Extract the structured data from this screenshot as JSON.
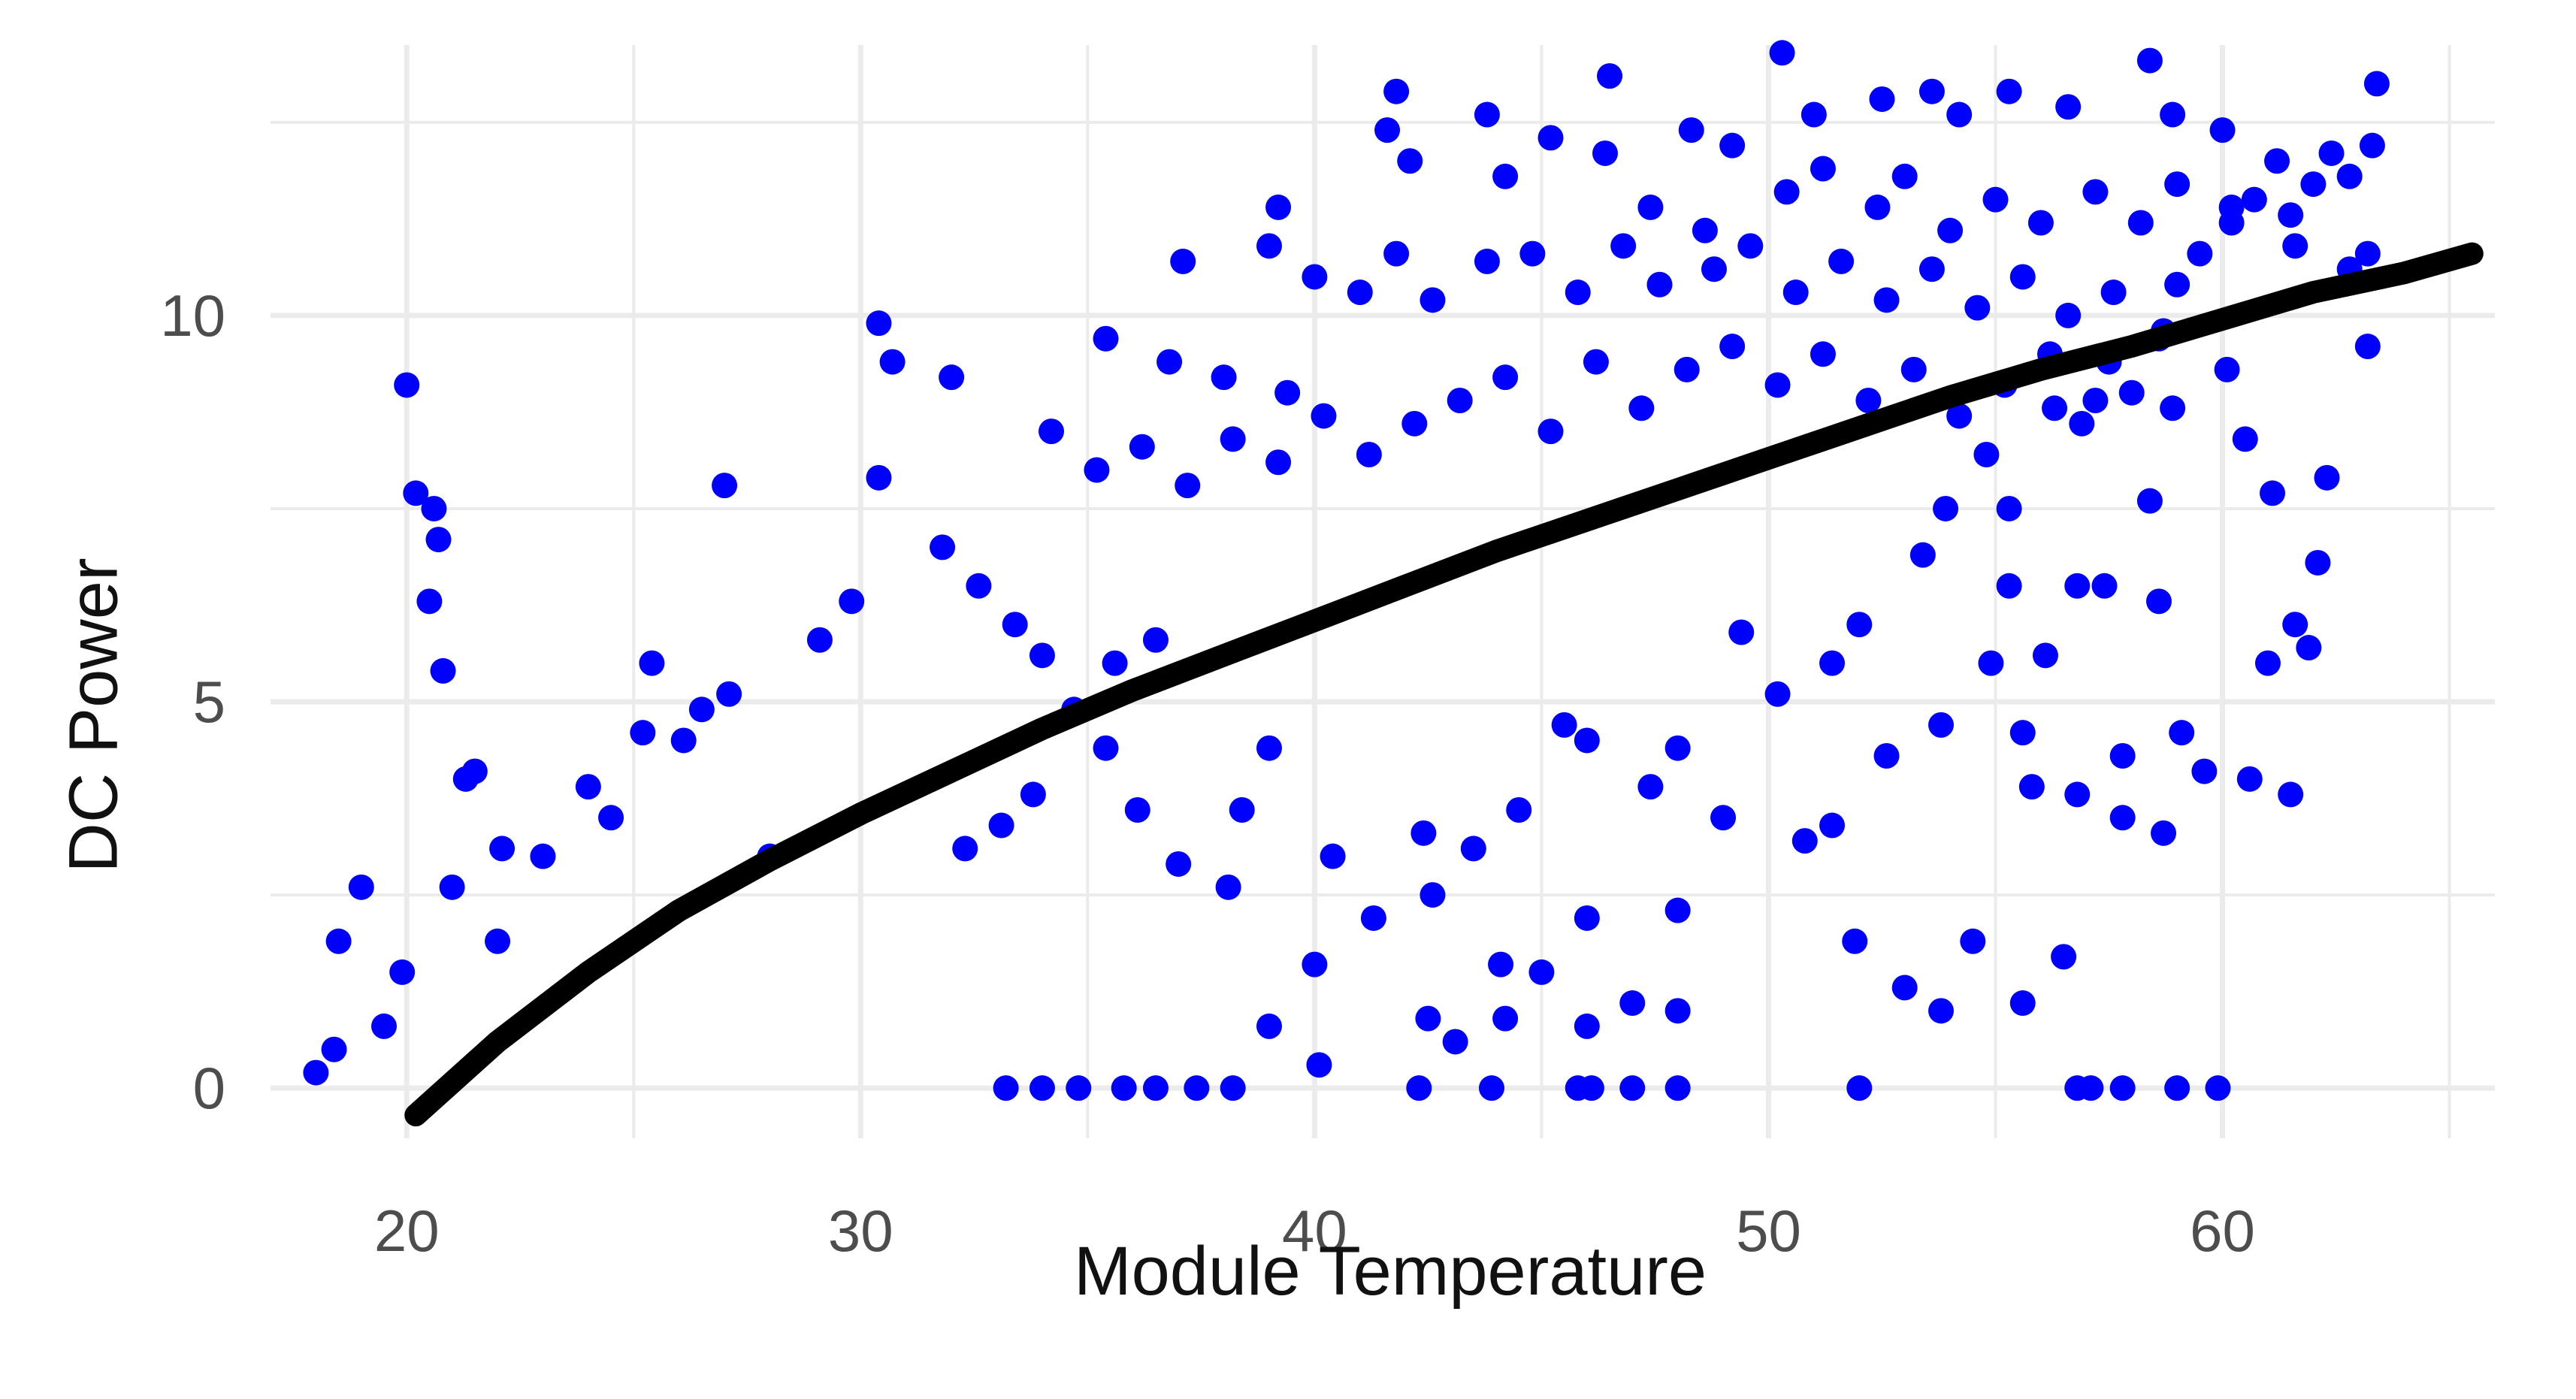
{
  "chart_data": {
    "type": "scatter",
    "xlabel": "Module Temperature",
    "ylabel": "DC Power",
    "xlim": [
      17,
      66
    ],
    "ylim": [
      -0.65,
      13.5
    ],
    "x_ticks": [
      20,
      30,
      40,
      50,
      60
    ],
    "y_ticks": [
      0,
      5,
      10
    ],
    "grid": true,
    "legend": "none",
    "point_color": "#0000ff",
    "line_color": "#000000",
    "background": "#ffffff",
    "grid_color": "#ebebeb",
    "series": [
      {
        "kind": "points",
        "points": [
          [
            20.0,
            9.1
          ],
          [
            20.2,
            7.7
          ],
          [
            20.6,
            7.5
          ],
          [
            20.5,
            6.3
          ],
          [
            20.8,
            5.4
          ],
          [
            20.7,
            7.1
          ],
          [
            27.0,
            7.8
          ],
          [
            30.4,
            9.9
          ],
          [
            30.7,
            9.4
          ],
          [
            32.0,
            9.2
          ],
          [
            30.4,
            7.9
          ],
          [
            31.8,
            7.0
          ],
          [
            25.4,
            5.5
          ],
          [
            35.4,
            9.7
          ],
          [
            37.1,
            10.7
          ],
          [
            36.8,
            9.4
          ],
          [
            39.0,
            10.9
          ],
          [
            39.2,
            11.4
          ],
          [
            41.8,
            12.9
          ],
          [
            41.6,
            12.4
          ],
          [
            42.1,
            12.0
          ],
          [
            43.8,
            12.6
          ],
          [
            46.5,
            13.1
          ],
          [
            48.3,
            12.4
          ],
          [
            50.3,
            13.4
          ],
          [
            51.0,
            12.6
          ],
          [
            52.5,
            12.8
          ],
          [
            53.6,
            12.9
          ],
          [
            54.2,
            12.6
          ],
          [
            55.3,
            12.9
          ],
          [
            56.6,
            12.7
          ],
          [
            58.4,
            13.3
          ],
          [
            58.9,
            12.6
          ],
          [
            60.0,
            12.4
          ],
          [
            62.4,
            12.1
          ],
          [
            63.4,
            13.0
          ],
          [
            61.5,
            11.3
          ],
          [
            63.2,
            10.8
          ],
          [
            63.2,
            9.6
          ],
          [
            62.3,
            7.9
          ],
          [
            61.1,
            7.7
          ],
          [
            61.0,
            5.5
          ],
          [
            62.1,
            6.8
          ],
          [
            61.6,
            6.0
          ],
          [
            61.9,
            5.7
          ],
          [
            60.5,
            8.4
          ],
          [
            59.1,
            4.6
          ],
          [
            59.6,
            4.1
          ],
          [
            60.6,
            4.0
          ],
          [
            61.5,
            3.8
          ],
          [
            58.7,
            3.3
          ],
          [
            57.8,
            4.3
          ],
          [
            57.8,
            3.5
          ],
          [
            56.8,
            3.8
          ],
          [
            55.6,
            4.6
          ],
          [
            55.8,
            3.9
          ],
          [
            54.5,
            1.9
          ],
          [
            55.6,
            1.1
          ],
          [
            56.5,
            1.7
          ],
          [
            56.8,
            0.0
          ],
          [
            57.1,
            0.0
          ],
          [
            57.8,
            0.0
          ],
          [
            59.0,
            0.0
          ],
          [
            59.9,
            0.0
          ],
          [
            52.0,
            0.0
          ],
          [
            51.9,
            1.9
          ],
          [
            53.0,
            1.3
          ],
          [
            53.8,
            1.0
          ],
          [
            50.8,
            3.2
          ],
          [
            51.4,
            3.4
          ],
          [
            52.6,
            4.3
          ],
          [
            53.8,
            4.7
          ],
          [
            54.9,
            5.5
          ],
          [
            56.1,
            5.6
          ],
          [
            55.3,
            6.5
          ],
          [
            56.8,
            6.5
          ],
          [
            57.4,
            6.5
          ],
          [
            58.6,
            6.3
          ],
          [
            58.4,
            7.6
          ],
          [
            58.9,
            8.8
          ],
          [
            60.1,
            9.3
          ],
          [
            47.0,
            1.1
          ],
          [
            48.0,
            1.0
          ],
          [
            48.0,
            2.3
          ],
          [
            46.0,
            2.2
          ],
          [
            45.0,
            1.5
          ],
          [
            44.2,
            0.9
          ],
          [
            43.1,
            0.6
          ],
          [
            42.5,
            0.9
          ],
          [
            42.3,
            0.0
          ],
          [
            43.9,
            0.0
          ],
          [
            45.8,
            0.0
          ],
          [
            46.1,
            0.0
          ],
          [
            47.0,
            0.0
          ],
          [
            48.0,
            0.0
          ],
          [
            46.0,
            0.8
          ],
          [
            44.1,
            1.6
          ],
          [
            42.6,
            2.5
          ],
          [
            40.1,
            0.3
          ],
          [
            40.0,
            1.6
          ],
          [
            39.0,
            0.8
          ],
          [
            38.2,
            0.0
          ],
          [
            37.4,
            0.0
          ],
          [
            36.5,
            0.0
          ],
          [
            35.8,
            0.0
          ],
          [
            34.8,
            0.0
          ],
          [
            34.0,
            0.0
          ],
          [
            33.2,
            0.0
          ],
          [
            24.0,
            3.9
          ],
          [
            24.5,
            3.5
          ],
          [
            25.2,
            4.6
          ],
          [
            26.1,
            4.5
          ],
          [
            22.1,
            3.1
          ],
          [
            23.0,
            3.0
          ],
          [
            21.3,
            4.0
          ],
          [
            21.5,
            4.1
          ],
          [
            22.0,
            1.9
          ],
          [
            21.0,
            2.6
          ],
          [
            19.9,
            1.5
          ],
          [
            19.0,
            2.6
          ],
          [
            18.5,
            1.9
          ],
          [
            19.5,
            0.8
          ],
          [
            18.0,
            0.2
          ],
          [
            18.4,
            0.5
          ],
          [
            28.0,
            3.0
          ],
          [
            29.1,
            5.8
          ],
          [
            29.8,
            6.3
          ],
          [
            27.1,
            5.1
          ],
          [
            26.5,
            4.9
          ],
          [
            32.6,
            6.5
          ],
          [
            33.4,
            6.0
          ],
          [
            34.0,
            5.6
          ],
          [
            34.7,
            4.9
          ],
          [
            35.6,
            5.5
          ],
          [
            36.5,
            5.8
          ],
          [
            33.8,
            3.8
          ],
          [
            33.1,
            3.4
          ],
          [
            32.3,
            3.1
          ],
          [
            35.4,
            4.4
          ],
          [
            36.1,
            3.6
          ],
          [
            37.0,
            2.9
          ],
          [
            38.1,
            2.6
          ],
          [
            38.4,
            3.6
          ],
          [
            39.0,
            4.4
          ],
          [
            40.4,
            3.0
          ],
          [
            41.3,
            2.2
          ],
          [
            42.4,
            3.3
          ],
          [
            43.5,
            3.1
          ],
          [
            44.5,
            3.6
          ],
          [
            45.5,
            4.7
          ],
          [
            46.0,
            4.5
          ],
          [
            47.4,
            3.9
          ],
          [
            48.0,
            4.4
          ],
          [
            49.0,
            3.5
          ],
          [
            49.4,
            5.9
          ],
          [
            50.2,
            5.1
          ],
          [
            51.4,
            5.5
          ],
          [
            52.0,
            6.0
          ],
          [
            53.4,
            6.9
          ],
          [
            53.9,
            7.5
          ],
          [
            54.8,
            8.2
          ],
          [
            55.3,
            7.5
          ],
          [
            56.3,
            8.8
          ],
          [
            56.9,
            8.6
          ],
          [
            57.5,
            9.4
          ],
          [
            58.0,
            9.0
          ],
          [
            58.7,
            9.8
          ],
          [
            59.0,
            10.4
          ],
          [
            59.5,
            10.8
          ],
          [
            60.2,
            11.2
          ],
          [
            60.7,
            11.5
          ],
          [
            61.2,
            12.0
          ],
          [
            62.0,
            11.7
          ],
          [
            62.8,
            11.8
          ],
          [
            63.3,
            12.2
          ],
          [
            44.2,
            11.8
          ],
          [
            45.2,
            12.3
          ],
          [
            46.4,
            12.1
          ],
          [
            47.4,
            11.4
          ],
          [
            48.6,
            11.1
          ],
          [
            49.2,
            12.2
          ],
          [
            50.4,
            11.6
          ],
          [
            51.2,
            11.9
          ],
          [
            52.4,
            11.4
          ],
          [
            53.0,
            11.8
          ],
          [
            54.0,
            11.1
          ],
          [
            55.0,
            11.5
          ],
          [
            56.0,
            11.2
          ],
          [
            57.2,
            11.6
          ],
          [
            58.2,
            11.2
          ],
          [
            59.0,
            11.7
          ],
          [
            60.2,
            11.4
          ],
          [
            61.6,
            10.9
          ],
          [
            62.8,
            10.6
          ],
          [
            38.0,
            9.2
          ],
          [
            39.4,
            9.0
          ],
          [
            40.0,
            10.5
          ],
          [
            41.0,
            10.3
          ],
          [
            41.8,
            10.8
          ],
          [
            42.6,
            10.2
          ],
          [
            43.8,
            10.7
          ],
          [
            44.8,
            10.8
          ],
          [
            45.8,
            10.3
          ],
          [
            46.8,
            10.9
          ],
          [
            47.6,
            10.4
          ],
          [
            48.8,
            10.6
          ],
          [
            49.6,
            10.9
          ],
          [
            50.6,
            10.3
          ],
          [
            51.6,
            10.7
          ],
          [
            52.6,
            10.2
          ],
          [
            53.6,
            10.6
          ],
          [
            54.6,
            10.1
          ],
          [
            55.6,
            10.5
          ],
          [
            56.6,
            10.0
          ],
          [
            57.6,
            10.3
          ],
          [
            58.6,
            9.7
          ],
          [
            34.2,
            8.5
          ],
          [
            35.2,
            8.0
          ],
          [
            36.2,
            8.3
          ],
          [
            37.2,
            7.8
          ],
          [
            38.2,
            8.4
          ],
          [
            39.2,
            8.1
          ],
          [
            40.2,
            8.7
          ],
          [
            41.2,
            8.2
          ],
          [
            42.2,
            8.6
          ],
          [
            43.2,
            8.9
          ],
          [
            44.2,
            9.2
          ],
          [
            45.2,
            8.5
          ],
          [
            46.2,
            9.4
          ],
          [
            47.2,
            8.8
          ],
          [
            48.2,
            9.3
          ],
          [
            49.2,
            9.6
          ],
          [
            50.2,
            9.1
          ],
          [
            51.2,
            9.5
          ],
          [
            52.2,
            8.9
          ],
          [
            53.2,
            9.3
          ],
          [
            54.2,
            8.7
          ],
          [
            55.2,
            9.1
          ],
          [
            56.2,
            9.5
          ],
          [
            57.2,
            8.9
          ]
        ]
      },
      {
        "kind": "line",
        "points": [
          [
            20.2,
            -0.35
          ],
          [
            22.0,
            0.6
          ],
          [
            24.0,
            1.5
          ],
          [
            26.0,
            2.3
          ],
          [
            28.0,
            2.95
          ],
          [
            30.0,
            3.55
          ],
          [
            32.0,
            4.1
          ],
          [
            34.0,
            4.65
          ],
          [
            36.0,
            5.15
          ],
          [
            38.0,
            5.6
          ],
          [
            40.0,
            6.05
          ],
          [
            42.0,
            6.5
          ],
          [
            44.0,
            6.95
          ],
          [
            46.0,
            7.35
          ],
          [
            48.0,
            7.75
          ],
          [
            50.0,
            8.15
          ],
          [
            52.0,
            8.55
          ],
          [
            54.0,
            8.95
          ],
          [
            56.0,
            9.3
          ],
          [
            58.0,
            9.6
          ],
          [
            60.0,
            9.95
          ],
          [
            62.0,
            10.3
          ],
          [
            64.0,
            10.55
          ],
          [
            65.5,
            10.8
          ]
        ]
      }
    ]
  }
}
